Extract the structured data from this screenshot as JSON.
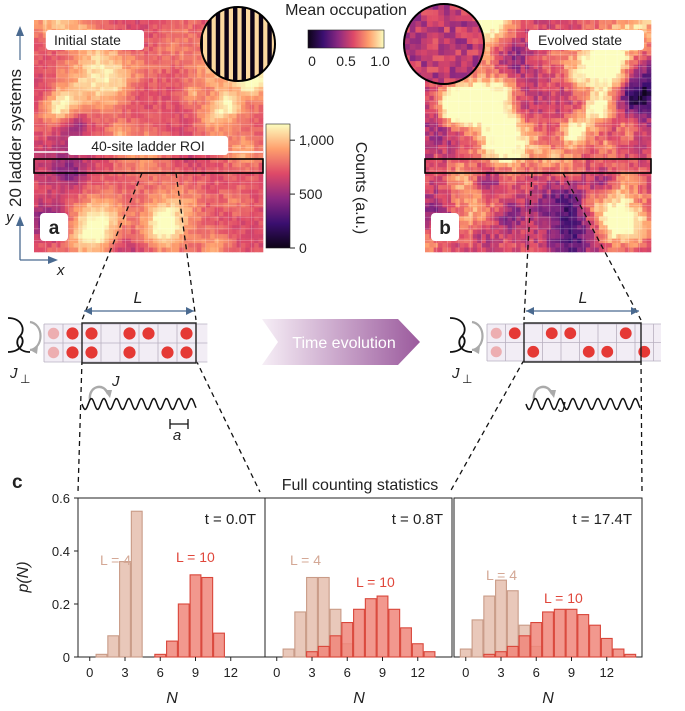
{
  "panel_labels": {
    "a": "a",
    "b": "b",
    "c": "c"
  },
  "panel_a": {
    "title": "Initial state",
    "roi_label": "40-site ladder ROI",
    "y_axis_label": "20 ladder systems",
    "x_axis": "x",
    "y_axis": "y"
  },
  "panel_b": {
    "title": "Evolved state"
  },
  "colorbar_counts": {
    "label": "Counts (a.u.)",
    "ticks": [
      "0",
      "500",
      "1,000"
    ],
    "tick_values": [
      0,
      500,
      1000
    ],
    "range": [
      0,
      1150
    ]
  },
  "colorbar_occupation": {
    "label": "Mean occupation",
    "ticks": [
      "0",
      "0.5",
      "1.0"
    ],
    "tick_values": [
      0,
      0.5,
      1.0
    ]
  },
  "schematic": {
    "L_label": "L",
    "J_label": "J",
    "Jperp_label": "J",
    "Jperp_sub": "⊥",
    "a_label": "a",
    "arrow_label": "Time evolution",
    "left_rows": [
      [
        1,
        1,
        0,
        1,
        1,
        0,
        1
      ],
      [
        1,
        1,
        0,
        1,
        0,
        1,
        1
      ]
    ],
    "right_rows": [
      [
        1,
        0,
        1,
        1,
        0,
        0,
        1,
        0
      ],
      [
        0,
        1,
        0,
        0,
        1,
        1,
        0,
        1
      ]
    ]
  },
  "colors": {
    "L4": "#e7c2b2",
    "L4_edge": "#c99b87",
    "L10": "#f0867a",
    "L10_edge": "#d9463a",
    "atom": "#e53935",
    "arrow": "#9b5a9d",
    "cmap": [
      "#0d0316",
      "#3b0f70",
      "#8c2981",
      "#de4968",
      "#fe9f6d",
      "#fcfdbf"
    ]
  },
  "chart_data": {
    "type": "bar",
    "title": "Full counting statistics",
    "ylabel": "p(N)",
    "xlabel": "N",
    "ylim": [
      0,
      0.6
    ],
    "yticks": [
      "0",
      "0.2",
      "0.4",
      "0.6"
    ],
    "ytick_values": [
      0,
      0.2,
      0.4,
      0.6
    ],
    "xticks": [
      "0",
      "3",
      "6",
      "9",
      "12"
    ],
    "xtick_values": [
      0,
      3,
      6,
      9,
      12
    ],
    "xlim": [
      -1,
      15
    ],
    "panels": [
      {
        "time_label": "t = 0.0T",
        "t_prefix": "t = 0.0",
        "t_unit": "T",
        "L4_label": "L = 4",
        "L10_label": "L = 10",
        "series": [
          {
            "name": "L = 4",
            "x": [
              1,
              2,
              3,
              4
            ],
            "values": [
              0.01,
              0.08,
              0.36,
              0.55
            ]
          },
          {
            "name": "L = 10",
            "x": [
              6,
              7,
              8,
              9,
              10,
              11
            ],
            "values": [
              0.01,
              0.06,
              0.2,
              0.31,
              0.3,
              0.09
            ]
          }
        ]
      },
      {
        "time_label": "t = 0.8T",
        "t_prefix": "t = 0.8",
        "t_unit": "T",
        "L4_label": "L = 4",
        "L10_label": "L = 10",
        "series": [
          {
            "name": "L = 4",
            "x": [
              1,
              2,
              3,
              4,
              5,
              6
            ],
            "values": [
              0.03,
              0.17,
              0.3,
              0.3,
              0.18,
              0.05
            ]
          },
          {
            "name": "L = 10",
            "x": [
              3,
              4,
              5,
              6,
              7,
              8,
              9,
              10,
              11,
              12,
              13
            ],
            "values": [
              0.02,
              0.04,
              0.08,
              0.13,
              0.18,
              0.22,
              0.23,
              0.18,
              0.11,
              0.05,
              0.02
            ]
          }
        ]
      },
      {
        "time_label": "t = 17.4T",
        "t_prefix": "t = 17.4",
        "t_unit": "T",
        "L4_label": "L = 4",
        "L10_label": "L = 10",
        "series": [
          {
            "name": "L = 4",
            "x": [
              0,
              1,
              2,
              3,
              4,
              5,
              6
            ],
            "values": [
              0.03,
              0.14,
              0.23,
              0.29,
              0.25,
              0.12,
              0.04
            ]
          },
          {
            "name": "L = 10",
            "x": [
              2,
              3,
              4,
              5,
              6,
              7,
              8,
              9,
              10,
              11,
              12,
              13,
              14
            ],
            "values": [
              0.01,
              0.02,
              0.04,
              0.08,
              0.13,
              0.17,
              0.18,
              0.18,
              0.16,
              0.12,
              0.07,
              0.03,
              0.01
            ]
          }
        ]
      }
    ]
  }
}
